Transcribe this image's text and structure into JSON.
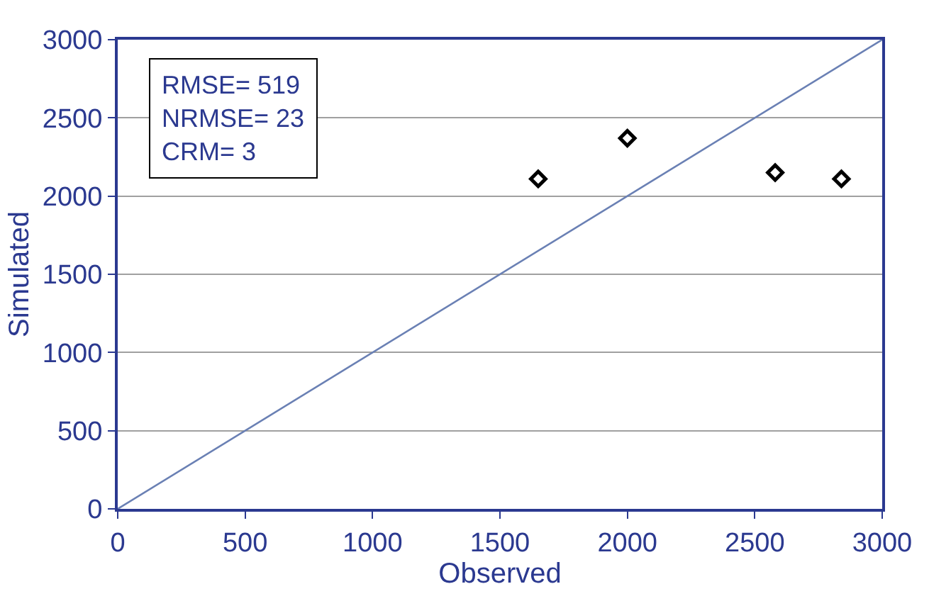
{
  "chart_data": {
    "type": "scatter",
    "xlabel": "Observed",
    "ylabel": "Simulated",
    "xlim": [
      0,
      3000
    ],
    "ylim": [
      0,
      3000
    ],
    "xticks": [
      0,
      500,
      1000,
      1500,
      2000,
      2500,
      3000
    ],
    "yticks": [
      0,
      500,
      1000,
      1500,
      2000,
      2500,
      3000
    ],
    "grid": "y",
    "legend": false,
    "series": [
      {
        "marker": "diamond",
        "color": "#000000",
        "x": [
          1650,
          2000,
          2580,
          2840
        ],
        "values": [
          2110,
          2370,
          2150,
          2110
        ]
      },
      {
        "type": "line",
        "marker": "none",
        "color": "#6a80b4",
        "x": [
          0,
          3000
        ],
        "values": [
          0,
          3000
        ]
      }
    ],
    "annotations": [
      "RMSE= 519",
      "NRMSE= 23",
      "CRM= 3"
    ]
  }
}
